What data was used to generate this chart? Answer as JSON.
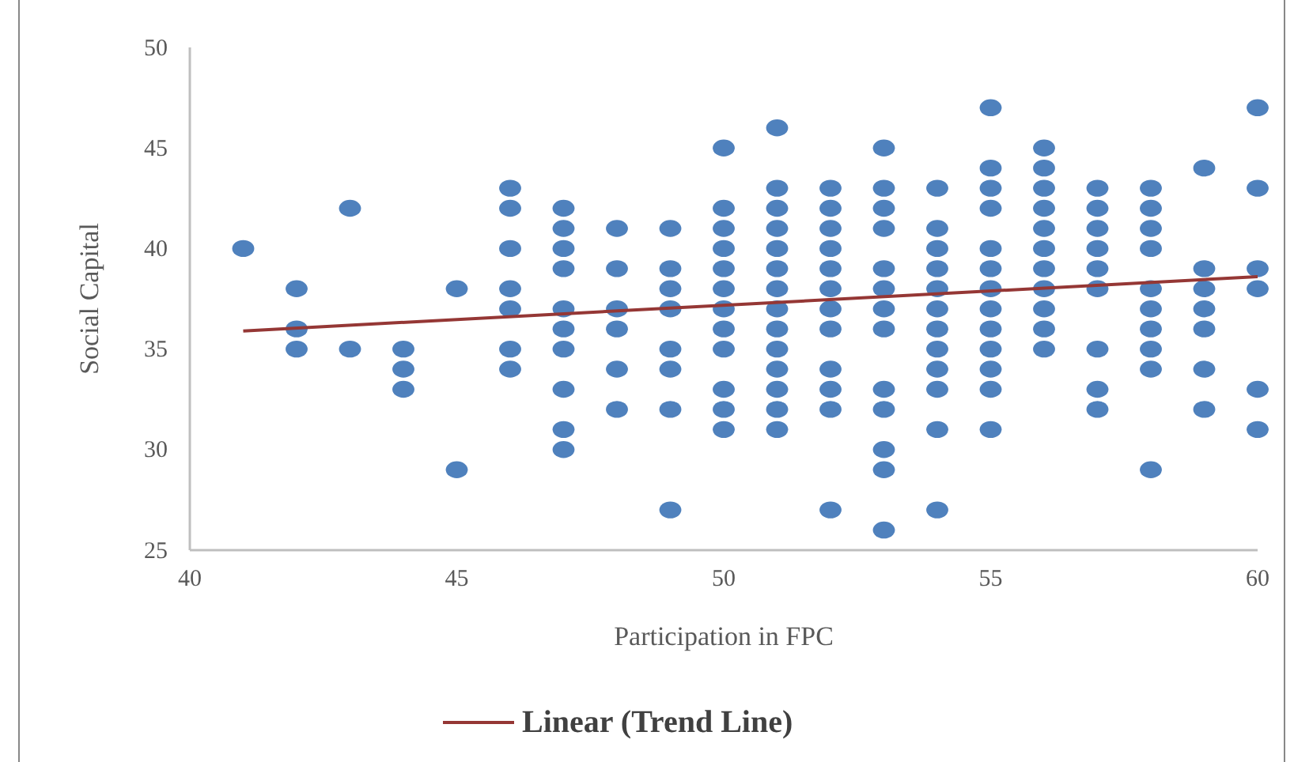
{
  "chart_data": {
    "type": "scatter",
    "xlabel": "Participation in FPC",
    "ylabel": "Social Capital",
    "xlim": [
      40,
      60
    ],
    "xticks": [
      40,
      45,
      50,
      55,
      60
    ],
    "ylim": [
      25,
      50
    ],
    "yticks": [
      25,
      30,
      35,
      40,
      45,
      50
    ],
    "grid": false,
    "legend": "bottom",
    "marker": "circle",
    "series": [
      {
        "color": "#4f81bd",
        "x": [
          41,
          42,
          42,
          42,
          43,
          43,
          44,
          44,
          44,
          45,
          45,
          46,
          46,
          46,
          46,
          46,
          46,
          46,
          47,
          47,
          47,
          47,
          47,
          47,
          47,
          47,
          47,
          47,
          48,
          48,
          48,
          48,
          48,
          48,
          49,
          49,
          49,
          49,
          49,
          49,
          49,
          49,
          50,
          50,
          50,
          50,
          50,
          50,
          50,
          50,
          50,
          50,
          50,
          50,
          51,
          51,
          51,
          51,
          51,
          51,
          51,
          51,
          51,
          51,
          51,
          51,
          51,
          51,
          52,
          52,
          52,
          52,
          52,
          52,
          52,
          52,
          52,
          52,
          52,
          52,
          53,
          53,
          53,
          53,
          53,
          53,
          53,
          53,
          53,
          53,
          53,
          53,
          53,
          54,
          54,
          54,
          54,
          54,
          54,
          54,
          54,
          54,
          54,
          54,
          54,
          55,
          55,
          55,
          55,
          55,
          55,
          55,
          55,
          55,
          55,
          55,
          55,
          55,
          56,
          56,
          56,
          56,
          56,
          56,
          56,
          56,
          56,
          56,
          56,
          57,
          57,
          57,
          57,
          57,
          57,
          57,
          57,
          57,
          58,
          58,
          58,
          58,
          58,
          58,
          58,
          58,
          58,
          58,
          59,
          59,
          59,
          59,
          59,
          59,
          59,
          60,
          60,
          60,
          60,
          60,
          60
        ],
        "values": [
          40,
          38,
          36,
          35,
          42,
          35,
          35,
          34,
          33,
          38,
          29,
          43,
          42,
          40,
          38,
          37,
          35,
          34,
          42,
          41,
          40,
          39,
          37,
          36,
          35,
          33,
          31,
          30,
          41,
          39,
          37,
          36,
          34,
          32,
          41,
          39,
          38,
          37,
          35,
          34,
          32,
          27,
          45,
          42,
          41,
          40,
          39,
          38,
          37,
          36,
          35,
          33,
          32,
          31,
          46,
          43,
          42,
          41,
          40,
          39,
          38,
          37,
          36,
          35,
          34,
          33,
          32,
          31,
          43,
          42,
          41,
          40,
          39,
          38,
          37,
          36,
          34,
          33,
          32,
          27,
          45,
          43,
          42,
          41,
          39,
          38,
          37,
          36,
          33,
          32,
          30,
          29,
          26,
          43,
          41,
          40,
          39,
          38,
          37,
          36,
          35,
          34,
          33,
          31,
          27,
          47,
          44,
          43,
          42,
          40,
          39,
          38,
          37,
          36,
          35,
          34,
          33,
          31,
          45,
          44,
          43,
          42,
          41,
          40,
          39,
          38,
          37,
          36,
          35,
          43,
          42,
          41,
          40,
          39,
          38,
          35,
          33,
          32,
          43,
          42,
          41,
          40,
          38,
          37,
          36,
          35,
          34,
          29,
          44,
          39,
          38,
          37,
          36,
          34,
          32,
          47,
          43,
          39,
          38,
          33,
          31
        ]
      },
      {
        "type": "line",
        "name": "Linear (Trend Line)",
        "color": "#953735",
        "marker": "none",
        "x": [
          41,
          60
        ],
        "values": [
          35.9,
          38.6
        ]
      }
    ]
  }
}
